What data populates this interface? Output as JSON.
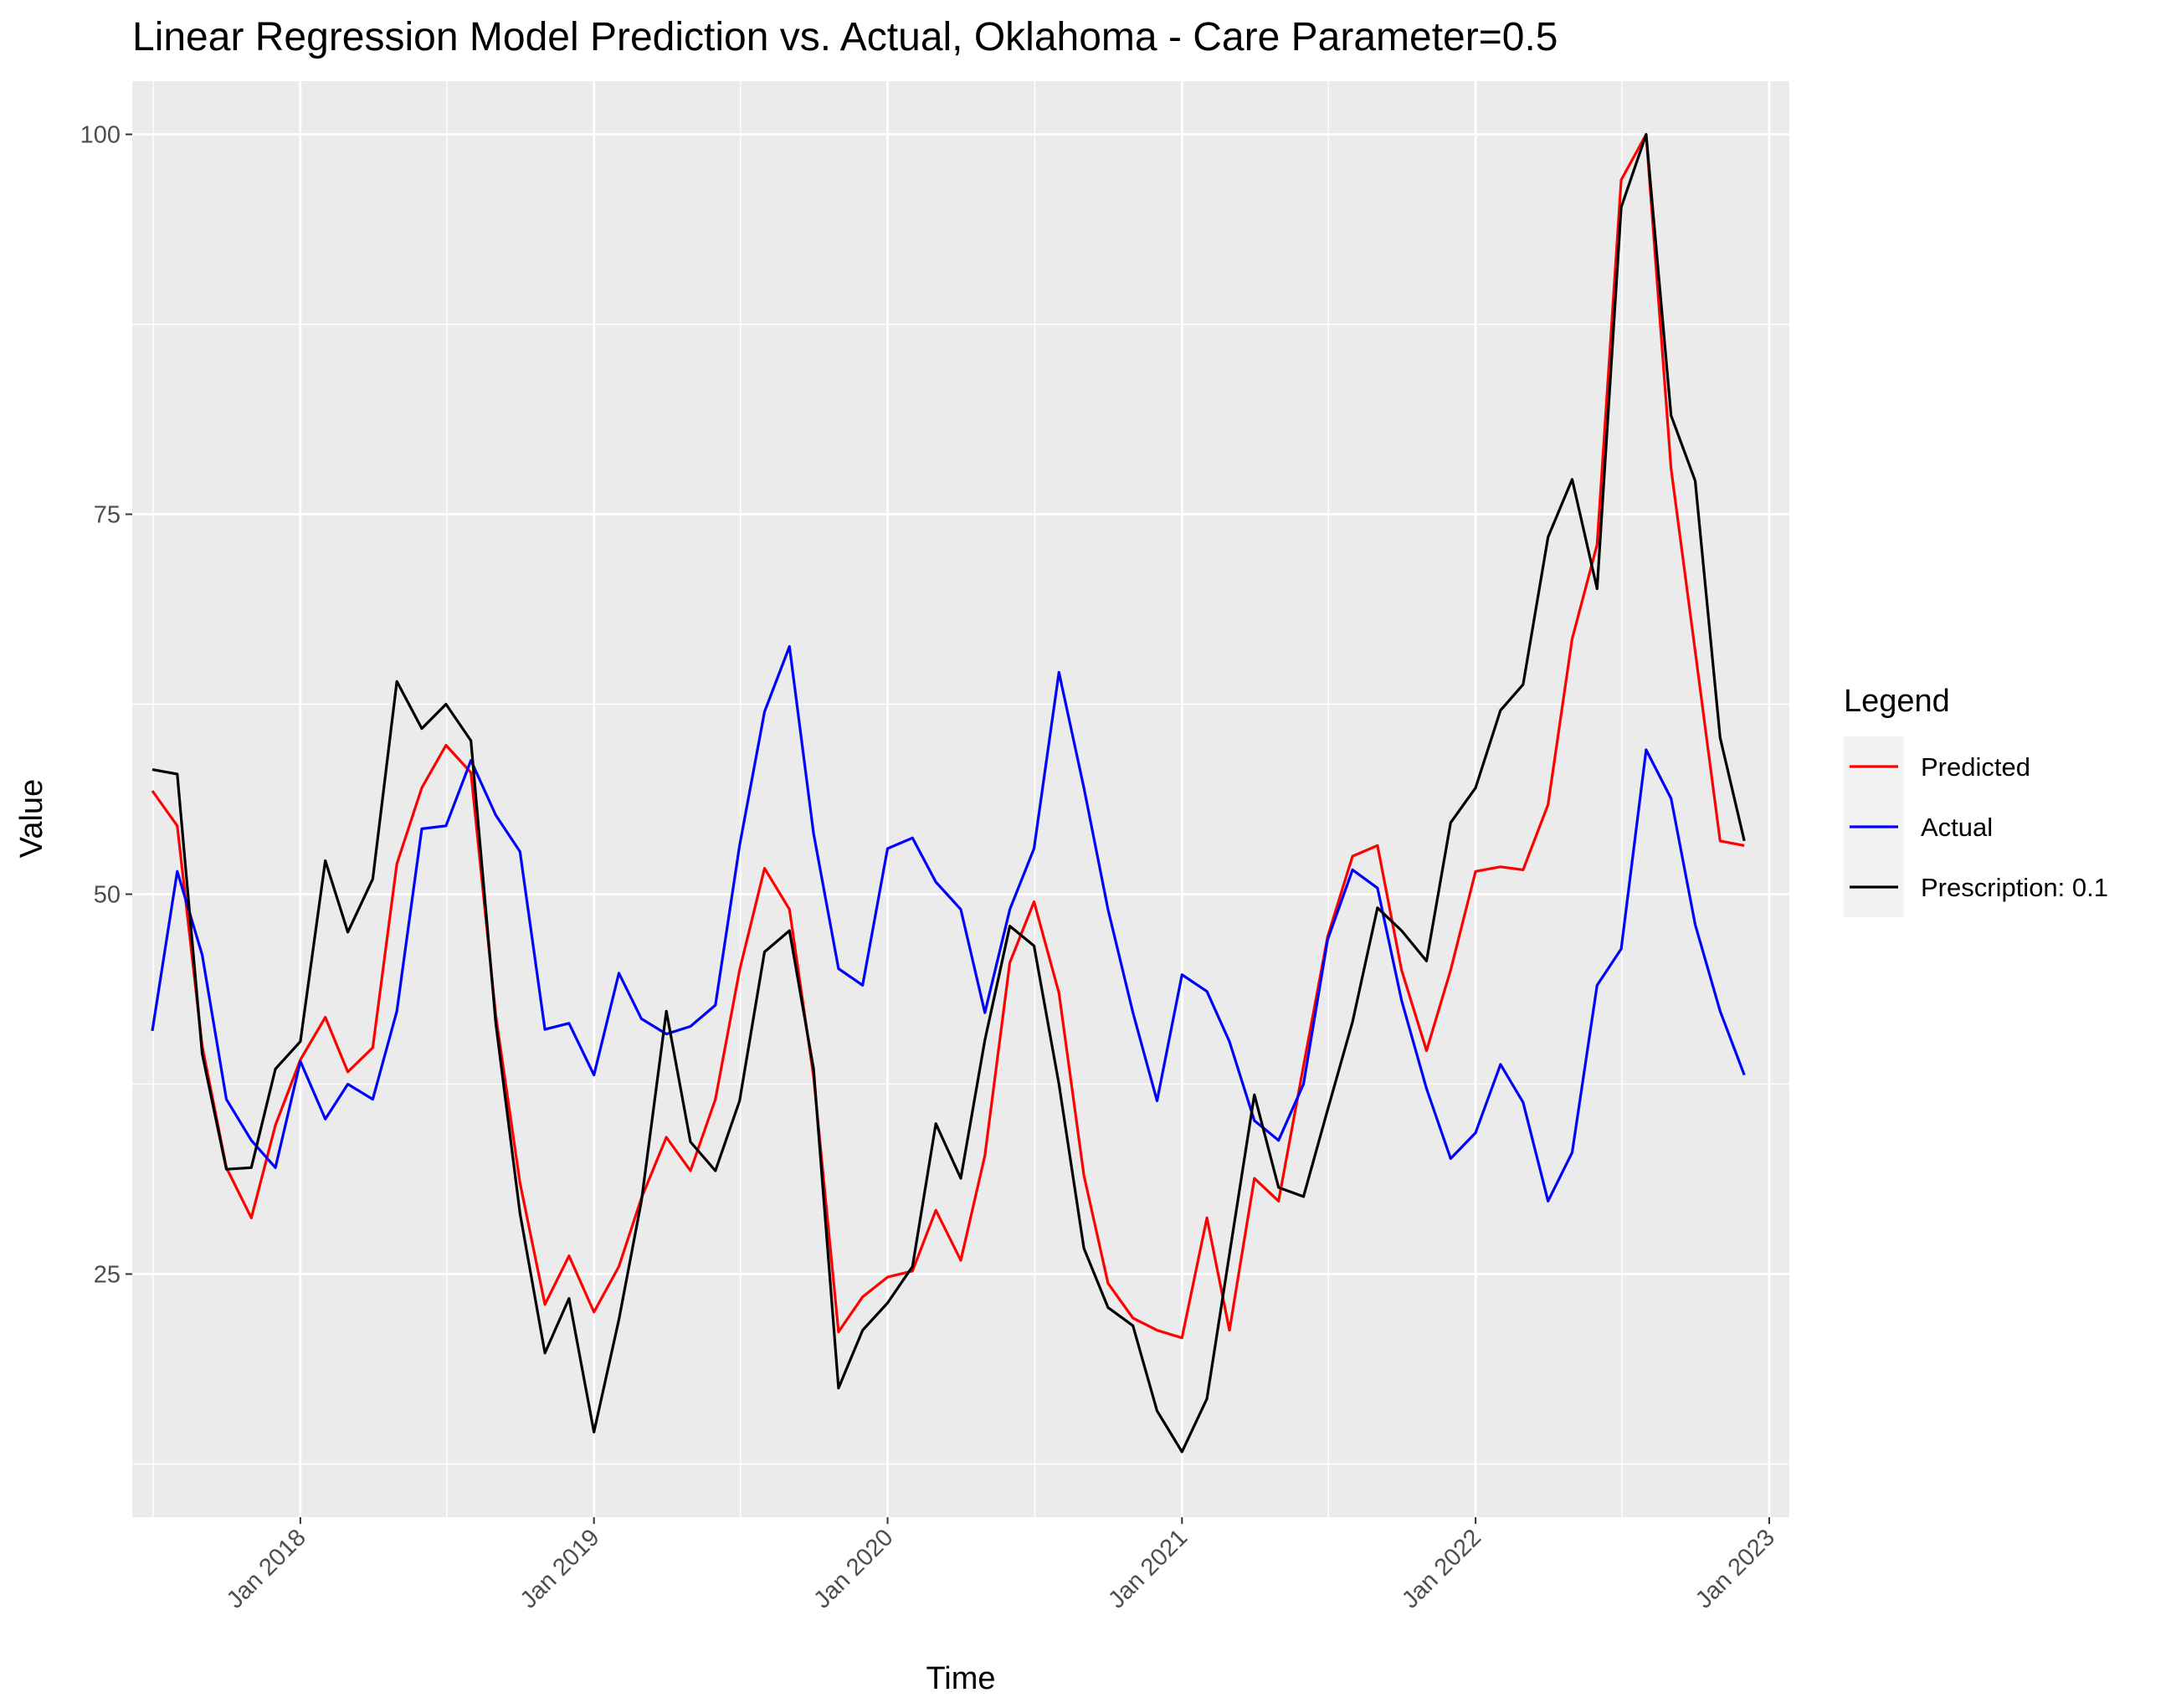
{
  "chart_data": {
    "type": "line",
    "title": "Linear Regression Model Prediction vs. Actual, Oklahoma - Care Parameter=0.5",
    "xlabel": "Time",
    "ylabel": "Value",
    "x_ticks": [
      "Jan 2018",
      "Jan 2019",
      "Jan 2020",
      "Jan 2021",
      "Jan 2022",
      "Jan 2023"
    ],
    "y_ticks": [
      "25",
      "50",
      "75",
      "100"
    ],
    "ylim": [
      9,
      103.5
    ],
    "xlim": [
      "2017-06-06",
      "2023-01-26"
    ],
    "grid": true,
    "legend": {
      "title": "Legend",
      "position": "right"
    },
    "x": [
      "2017-07-01",
      "2017-08-01",
      "2017-09-01",
      "2017-10-01",
      "2017-11-01",
      "2017-12-01",
      "2018-01-01",
      "2018-02-01",
      "2018-03-01",
      "2018-04-01",
      "2018-05-01",
      "2018-06-01",
      "2018-07-01",
      "2018-08-01",
      "2018-09-01",
      "2018-10-01",
      "2018-11-01",
      "2018-12-01",
      "2019-01-01",
      "2019-02-01",
      "2019-03-01",
      "2019-04-01",
      "2019-05-01",
      "2019-06-01",
      "2019-07-01",
      "2019-08-01",
      "2019-09-01",
      "2019-10-01",
      "2019-11-01",
      "2019-12-01",
      "2020-01-01",
      "2020-02-01",
      "2020-03-01",
      "2020-04-01",
      "2020-05-01",
      "2020-06-01",
      "2020-07-01",
      "2020-08-01",
      "2020-09-01",
      "2020-10-01",
      "2020-11-01",
      "2020-12-01",
      "2021-01-01",
      "2021-02-01",
      "2021-03-01",
      "2021-04-01",
      "2021-05-01",
      "2021-06-01",
      "2021-07-01",
      "2021-08-01",
      "2021-09-01",
      "2021-10-01",
      "2021-11-01",
      "2021-12-01",
      "2022-01-01",
      "2022-02-01",
      "2022-03-01",
      "2022-04-01",
      "2022-05-01",
      "2022-06-01",
      "2022-07-01",
      "2022-08-01",
      "2022-09-01",
      "2022-10-01",
      "2022-11-01",
      "2022-12-01"
    ],
    "series": [
      {
        "name": "Predicted",
        "color": "#ff0000",
        "values": [
          56.8,
          54.5,
          40.0,
          32.0,
          28.7,
          34.8,
          39.1,
          41.9,
          38.3,
          39.9,
          52.0,
          57.0,
          59.8,
          58.0,
          42.0,
          31.0,
          23.0,
          26.2,
          22.5,
          25.5,
          30.0,
          34.0,
          31.8,
          36.5,
          45.0,
          51.7,
          49.0,
          38.0,
          21.2,
          23.5,
          24.8,
          25.2,
          29.2,
          25.9,
          32.8,
          45.5,
          49.5,
          43.5,
          31.5,
          24.4,
          22.1,
          21.3,
          20.8,
          28.7,
          21.3,
          31.3,
          29.8,
          38.7,
          47.2,
          52.5,
          53.2,
          45.0,
          39.7,
          45.0,
          51.5,
          51.8,
          51.6,
          55.9,
          66.8,
          73.0,
          97.0,
          100.0,
          78.0,
          66.0,
          53.5,
          53.2
        ]
      },
      {
        "name": "Actual",
        "color": "#0000ff",
        "values": [
          41.0,
          51.5,
          46.0,
          36.5,
          33.8,
          32.0,
          39.0,
          35.2,
          37.5,
          36.5,
          42.3,
          54.3,
          54.5,
          58.8,
          55.2,
          52.8,
          41.1,
          41.5,
          38.1,
          44.8,
          41.8,
          40.8,
          41.3,
          42.7,
          53.2,
          62.0,
          66.3,
          54.0,
          45.1,
          44.0,
          53.0,
          53.7,
          50.8,
          49.0,
          42.2,
          49.0,
          53.0,
          64.6,
          57.0,
          49.0,
          42.2,
          36.4,
          44.7,
          43.6,
          40.3,
          35.1,
          33.8,
          37.5,
          47.0,
          51.6,
          50.4,
          43.0,
          37.2,
          32.6,
          34.3,
          38.8,
          36.3,
          29.8,
          33.0,
          44.0,
          46.4,
          59.5,
          56.3,
          48.0,
          42.3,
          38.1
        ]
      },
      {
        "name": "Prescription: 0.1",
        "color": "#000000",
        "values": [
          58.2,
          57.9,
          39.5,
          31.9,
          32.0,
          38.5,
          40.3,
          52.2,
          47.5,
          51.0,
          64.0,
          60.9,
          62.5,
          60.1,
          41.5,
          29.0,
          19.8,
          23.4,
          14.6,
          22.0,
          29.8,
          42.3,
          33.7,
          31.8,
          36.4,
          46.2,
          47.6,
          38.5,
          17.5,
          21.3,
          23.1,
          25.5,
          34.9,
          31.3,
          40.4,
          47.9,
          46.6,
          37.5,
          26.7,
          22.8,
          21.6,
          16.0,
          13.3,
          16.8,
          26.3,
          36.8,
          30.7,
          30.1,
          35.8,
          41.6,
          49.1,
          47.6,
          45.6,
          54.7,
          57.0,
          62.1,
          63.8,
          73.5,
          77.3,
          70.1,
          95.2,
          100.0,
          81.5,
          77.2,
          60.3,
          53.5
        ]
      }
    ]
  }
}
